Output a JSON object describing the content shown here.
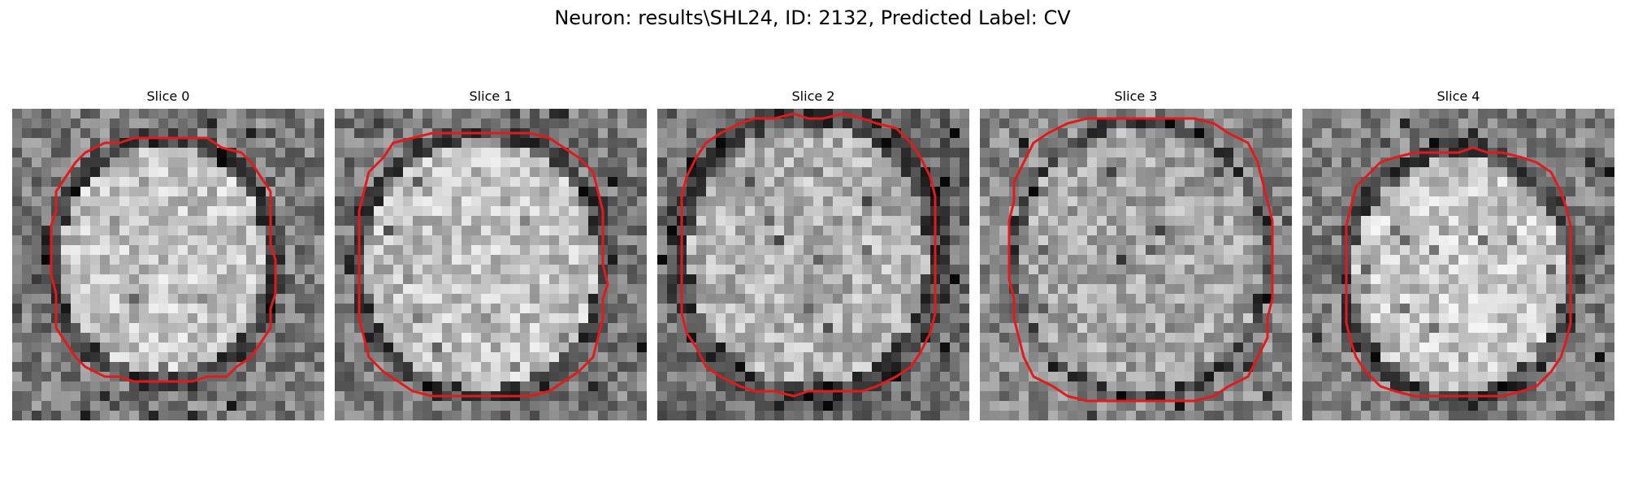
{
  "figure": {
    "title": "Neuron: results\\SHL24, ID: 2132, Predicted Label: CV"
  },
  "colors": {
    "background": "#ffffff",
    "contour": "#e31a1c",
    "colormap": "gray"
  },
  "panels": [
    {
      "title": "Slice 0"
    },
    {
      "title": "Slice 1"
    },
    {
      "title": "Slice 2"
    },
    {
      "title": "Slice 3"
    },
    {
      "title": "Slice 4"
    }
  ]
}
